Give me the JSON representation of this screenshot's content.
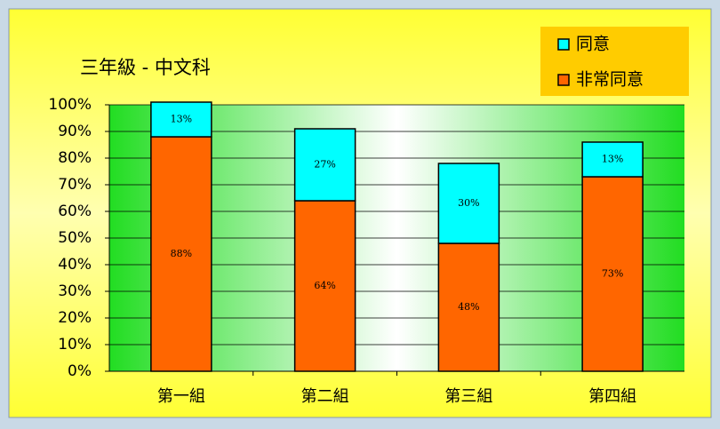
{
  "chart_data": {
    "type": "stacked_bar",
    "title": "三年級 - 中文科",
    "categories": [
      "第一組",
      "第二組",
      "第三組",
      "第四組"
    ],
    "series": [
      {
        "name": "非常同意",
        "color": "#ff6600",
        "values": [
          88,
          64,
          48,
          73
        ],
        "value_labels": [
          "88%",
          "64%",
          "48%",
          "73%"
        ]
      },
      {
        "name": "同意",
        "color": "#00ffff",
        "values": [
          13,
          27,
          30,
          13
        ],
        "value_labels": [
          "13%",
          "27%",
          "30%",
          "13%"
        ]
      }
    ],
    "ylim": [
      0,
      100
    ],
    "yticks": [
      {
        "value": 0,
        "label": "0%"
      },
      {
        "value": 10,
        "label": "10%"
      },
      {
        "value": 20,
        "label": "20%"
      },
      {
        "value": 30,
        "label": "30%"
      },
      {
        "value": 40,
        "label": "40%"
      },
      {
        "value": 50,
        "label": "50%"
      },
      {
        "value": 60,
        "label": "60%"
      },
      {
        "value": 70,
        "label": "70%"
      },
      {
        "value": 80,
        "label": "80%"
      },
      {
        "value": 90,
        "label": "90%"
      },
      {
        "value": 100,
        "label": "100%"
      }
    ],
    "grid": true,
    "legend": "top-right"
  }
}
